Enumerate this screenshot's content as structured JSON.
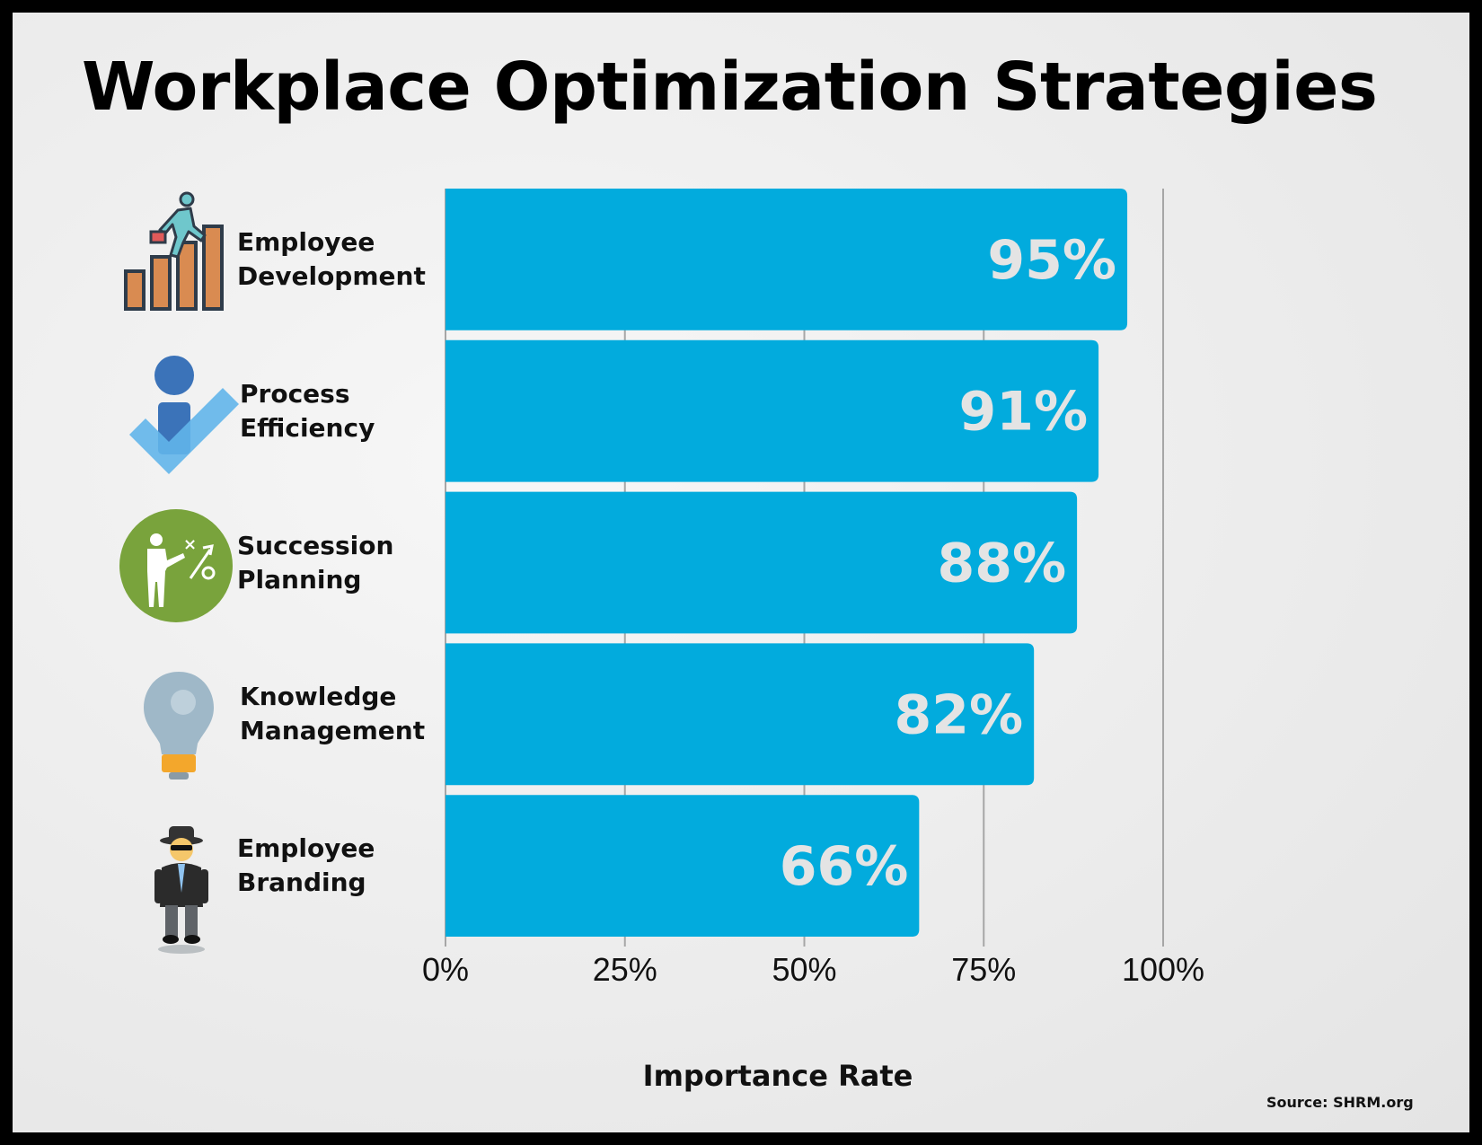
{
  "chart_data": {
    "type": "bar",
    "orientation": "horizontal",
    "title": "Workplace Optimization Strategies",
    "categories": [
      [
        "Employee",
        "Development"
      ],
      [
        "Process",
        "Efficiency"
      ],
      [
        "Succession",
        "Planning"
      ],
      [
        "Knowledge",
        "Management"
      ],
      [
        "Employee",
        "Branding"
      ]
    ],
    "values": [
      95,
      91,
      88,
      82,
      66
    ],
    "value_labels": [
      "95%",
      "91%",
      "88%",
      "82%",
      "66%"
    ],
    "xlabel": "Importance Rate",
    "ylabel": "",
    "xlim": [
      0,
      100
    ],
    "x_ticks": [
      0,
      25,
      50,
      75,
      100
    ],
    "x_tick_labels": [
      "0%",
      "25%",
      "50%",
      "75%",
      "100%"
    ],
    "grid": "vertical",
    "bar_color": "#02ABDD",
    "value_label_color": "#E4E4E4",
    "source": "Source: SHRM.org",
    "icons": [
      "stair-climber-icon",
      "person-checkmark-icon",
      "strategy-presenter-icon",
      "lightbulb-icon",
      "spy-icon"
    ]
  }
}
